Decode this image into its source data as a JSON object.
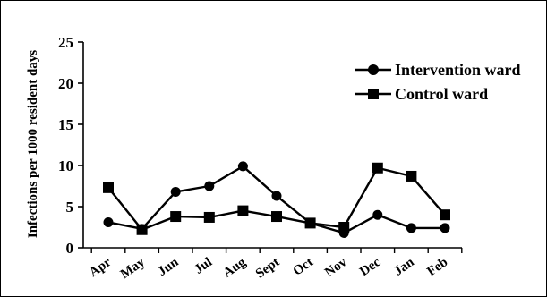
{
  "chart_data": {
    "type": "line",
    "title": "",
    "xlabel": "",
    "ylabel": "Infections per 1000 resident days",
    "categories": [
      "Apr",
      "May",
      "Jun",
      "Jul",
      "Aug",
      "Sept",
      "Oct",
      "Nov",
      "Dec",
      "Jan",
      "Feb"
    ],
    "ylim": [
      0,
      25
    ],
    "yticks": [
      0,
      5,
      10,
      15,
      20,
      25
    ],
    "grid": false,
    "legend_position": "top-right",
    "series": [
      {
        "name": "Intervention ward",
        "marker": "circle",
        "values": [
          3.1,
          2.3,
          6.8,
          7.5,
          9.9,
          6.3,
          3.0,
          1.8,
          4.0,
          2.4,
          2.4
        ]
      },
      {
        "name": "Control ward",
        "marker": "square",
        "values": [
          7.3,
          2.2,
          3.8,
          3.7,
          4.5,
          3.8,
          3.0,
          2.5,
          9.7,
          8.7,
          4.0
        ]
      }
    ]
  }
}
